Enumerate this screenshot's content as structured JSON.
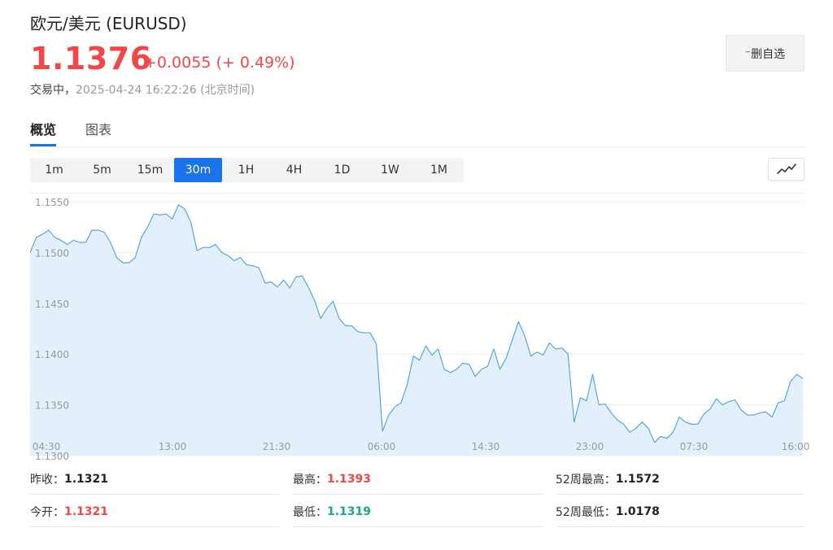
{
  "header": {
    "title": "欧元/美元  (EURUSD)",
    "price": "1.1376",
    "change": "+0.0055 (+ 0.49%)",
    "status": "交易中，",
    "timestamp": "2025-04-24 16:22:26 (北京时间)",
    "watch_button": "⁻删自选"
  },
  "tabs": [
    {
      "label": "概览",
      "active": true
    },
    {
      "label": "图表",
      "active": false
    }
  ],
  "timeframes": [
    {
      "label": "1m",
      "active": false
    },
    {
      "label": "5m",
      "active": false
    },
    {
      "label": "15m",
      "active": false
    },
    {
      "label": "30m",
      "active": true
    },
    {
      "label": "1H",
      "active": false
    },
    {
      "label": "4H",
      "active": false
    },
    {
      "label": "1D",
      "active": false
    },
    {
      "label": "1W",
      "active": false
    },
    {
      "label": "1M",
      "active": false
    }
  ],
  "chart_type_icon": "line-chart-icon",
  "colors": {
    "up": "#f04848",
    "down": "#1aab7d",
    "accent": "#1a73e8",
    "line": "#4a9fe0",
    "fill": "#e3f0fc"
  },
  "chart_data": {
    "type": "area",
    "y_ticks": [
      "1.1550",
      "1.1500",
      "1.1450",
      "1.1400",
      "1.1350",
      "1.1300"
    ],
    "x_ticks": [
      "04:30",
      "13:00",
      "21:30",
      "06:00",
      "14:30",
      "23:00",
      "07:30",
      "16:00"
    ],
    "ylim": [
      1.13,
      1.155
    ],
    "grid": true,
    "values": [
      1.15,
      1.1515,
      1.1518,
      1.1522,
      1.1515,
      1.1512,
      1.1508,
      1.1512,
      1.151,
      1.151,
      1.1522,
      1.1522,
      1.152,
      1.151,
      1.1495,
      1.149,
      1.149,
      1.1495,
      1.1515,
      1.1525,
      1.1538,
      1.1537,
      1.1538,
      1.1533,
      1.1547,
      1.1543,
      1.153,
      1.1502,
      1.1505,
      1.1505,
      1.1508,
      1.15,
      1.1497,
      1.1492,
      1.1495,
      1.1488,
      1.1487,
      1.1485,
      1.147,
      1.1471,
      1.1466,
      1.1473,
      1.1465,
      1.1476,
      1.1477,
      1.1466,
      1.1453,
      1.1435,
      1.1445,
      1.1452,
      1.1435,
      1.1428,
      1.1428,
      1.1422,
      1.1421,
      1.1421,
      1.141,
      1.1324,
      1.134,
      1.1348,
      1.1352,
      1.137,
      1.1398,
      1.1394,
      1.1408,
      1.1399,
      1.1405,
      1.1385,
      1.1382,
      1.1385,
      1.1391,
      1.139,
      1.1378,
      1.1385,
      1.1388,
      1.1405,
      1.1385,
      1.1396,
      1.1414,
      1.1432,
      1.1418,
      1.1398,
      1.1402,
      1.1399,
      1.1411,
      1.1405,
      1.1406,
      1.14,
      1.1333,
      1.1357,
      1.1354,
      1.138,
      1.135,
      1.1351,
      1.1342,
      1.1335,
      1.1331,
      1.1323,
      1.1327,
      1.1333,
      1.1327,
      1.1313,
      1.1319,
      1.1317,
      1.1323,
      1.1338,
      1.1333,
      1.1331,
      1.1331,
      1.1341,
      1.1346,
      1.1356,
      1.135,
      1.1353,
      1.1355,
      1.1345,
      1.134,
      1.134,
      1.1342,
      1.1343,
      1.1338,
      1.1352,
      1.1354,
      1.1373,
      1.138,
      1.1376
    ]
  },
  "stats": [
    [
      {
        "label": "昨收：",
        "value": "1.1321",
        "tone": "normal"
      },
      {
        "label": "最高：",
        "value": "1.1393",
        "tone": "red"
      },
      {
        "label": "52周最高：",
        "value": "1.1572",
        "tone": "normal"
      }
    ],
    [
      {
        "label": "今开：",
        "value": "1.1321",
        "tone": "red"
      },
      {
        "label": "最低：",
        "value": "1.1319",
        "tone": "green"
      },
      {
        "label": "52周最低：",
        "value": "1.0178",
        "tone": "normal"
      }
    ]
  ]
}
